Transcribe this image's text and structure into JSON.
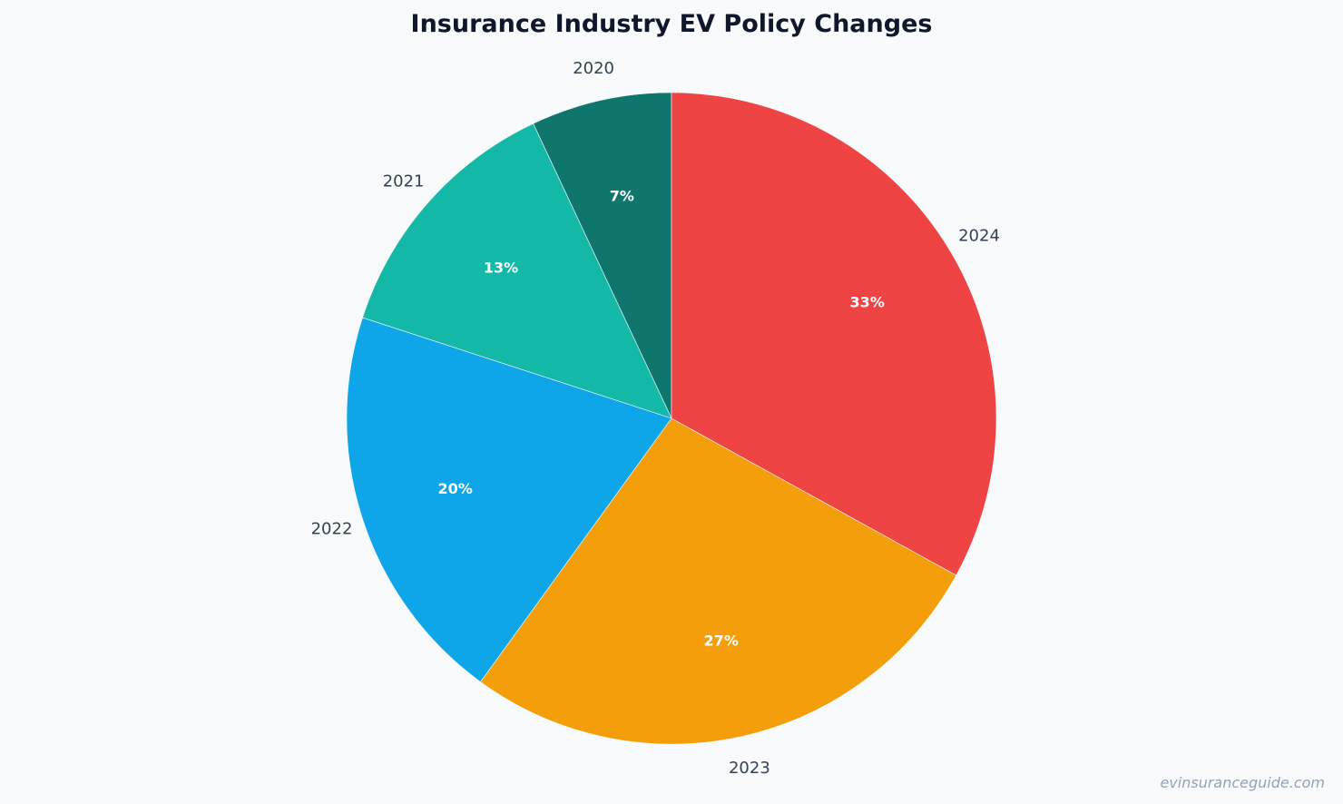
{
  "chart_data": {
    "type": "pie",
    "title": "Insurance Industry EV Policy Changes",
    "categories": [
      "2020",
      "2021",
      "2022",
      "2023",
      "2024"
    ],
    "values": [
      7,
      13,
      20,
      27,
      33
    ],
    "value_labels": [
      "7%",
      "13%",
      "20%",
      "27%",
      "33%"
    ],
    "colors": [
      "#0f766e",
      "#14b8a6",
      "#0ea5e9",
      "#f59e0b",
      "#ef4444"
    ],
    "direction": "counterclockwise",
    "start": "top",
    "legend": "none"
  },
  "watermark": "evinsuranceguide.com"
}
